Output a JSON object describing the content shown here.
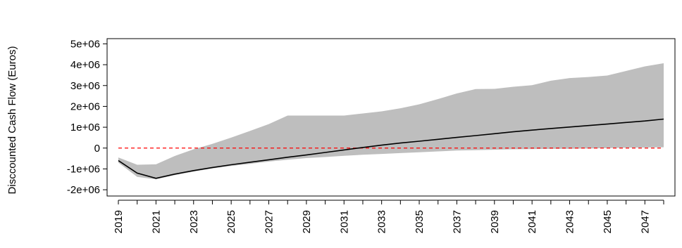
{
  "chart_data": {
    "type": "area",
    "title": "",
    "xlabel": "",
    "ylabel": "Disccounted Cash Flow (Euros)",
    "xlim": [
      2018.4,
      2048.6
    ],
    "ylim": [
      -2300000,
      5250000
    ],
    "x_ticks": [
      2019,
      2021,
      2023,
      2025,
      2027,
      2029,
      2031,
      2033,
      2035,
      2037,
      2039,
      2041,
      2043,
      2045,
      2047
    ],
    "x_tick_labels": [
      "2019",
      "2021",
      "2023",
      "2025",
      "2027",
      "2029",
      "2031",
      "2033",
      "2035",
      "2037",
      "2039",
      "2041",
      "2043",
      "2045",
      "2047"
    ],
    "y_ticks": [
      -2000000,
      -1000000,
      0,
      1000000,
      2000000,
      3000000,
      4000000,
      5000000
    ],
    "y_tick_labels": [
      "-2e+06",
      "-1e+06",
      "0",
      "1e+06",
      "2e+06",
      "3e+06",
      "4e+06",
      "5e+06"
    ],
    "x": [
      2019,
      2020,
      2021,
      2022,
      2023,
      2024,
      2025,
      2026,
      2027,
      2028,
      2029,
      2030,
      2031,
      2032,
      2033,
      2034,
      2035,
      2036,
      2037,
      2038,
      2039,
      2040,
      2041,
      2042,
      2043,
      2044,
      2045,
      2046,
      2047,
      2048
    ],
    "series": [
      {
        "role": "band-upper",
        "values": [
          -450000,
          -800000,
          -780000,
          -380000,
          -60000,
          200000,
          500000,
          820000,
          1150000,
          1560000,
          1560000,
          1560000,
          1560000,
          1660000,
          1760000,
          1910000,
          2100000,
          2350000,
          2620000,
          2830000,
          2840000,
          2940000,
          3020000,
          3230000,
          3360000,
          3410000,
          3480000,
          3700000,
          3920000,
          4070000
        ]
      },
      {
        "role": "band-lower",
        "values": [
          -700000,
          -1380000,
          -1500000,
          -1300000,
          -1130000,
          -980000,
          -860000,
          -760000,
          -650000,
          -560000,
          -480000,
          -430000,
          -370000,
          -320000,
          -280000,
          -240000,
          -200000,
          -160000,
          -120000,
          -100000,
          -80000,
          -60000,
          -50000,
          -40000,
          -30000,
          -20000,
          0,
          20000,
          30000,
          40000
        ]
      },
      {
        "role": "median",
        "values": [
          -600000,
          -1200000,
          -1450000,
          -1250000,
          -1080000,
          -930000,
          -800000,
          -680000,
          -560000,
          -440000,
          -330000,
          -210000,
          -90000,
          30000,
          140000,
          240000,
          330000,
          420000,
          510000,
          600000,
          690000,
          780000,
          860000,
          940000,
          1010000,
          1080000,
          1150000,
          1230000,
          1300000,
          1390000
        ]
      }
    ],
    "reference_line": {
      "y": 0,
      "style": "dashed"
    },
    "grid": false,
    "legend": "none",
    "colors": {
      "band": "#bebebe",
      "median": "#000000",
      "reference": "#ff0000",
      "axis": "#000000"
    }
  }
}
